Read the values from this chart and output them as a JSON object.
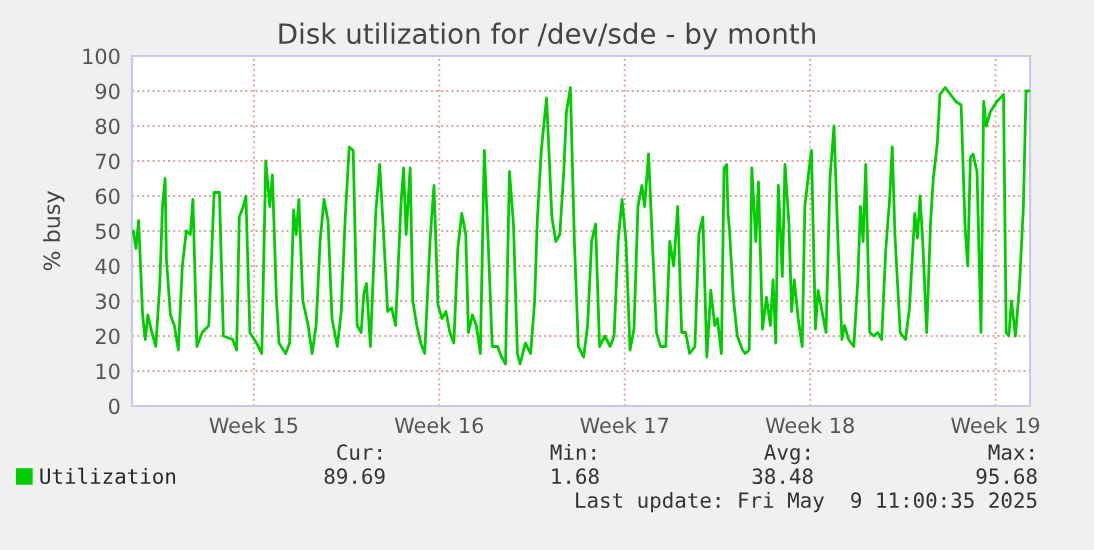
{
  "chart_data": {
    "type": "line",
    "title": "Disk utilization for /dev/sde - by month",
    "ylabel": "% busy",
    "xlim": [
      "2025-04-05T09:36",
      "2025-05-09T07:12"
    ],
    "ylim": [
      0,
      100
    ],
    "xticks": [
      {
        "value": "2025-04-10",
        "label": "Week 15"
      },
      {
        "value": "2025-04-17",
        "label": "Week 16"
      },
      {
        "value": "2025-04-24",
        "label": "Week 17"
      },
      {
        "value": "2025-05-01",
        "label": "Week 18"
      },
      {
        "value": "2025-05-08",
        "label": "Week 19"
      }
    ],
    "yticks": [
      0,
      10,
      20,
      30,
      40,
      50,
      60,
      70,
      80,
      90,
      100
    ],
    "grid": true,
    "legend": "bottom left",
    "marker": "none",
    "line_style": "solid",
    "annotations": [
      "Cur:",
      "Min:",
      "Avg:",
      "Max:",
      "89.69",
      "1.68",
      "38.48",
      "95.68",
      "Last update: Fri May  9 11:00:35 2025"
    ],
    "series": [
      {
        "name": "Utilization",
        "color": "#00cc00",
        "x": [
          "2025-04-05T10:48",
          "2025-04-05T13:12",
          "2025-04-05T15:36",
          "2025-04-05T19:12",
          "2025-04-05T21:36",
          "2025-04-06T00:00",
          "2025-04-06T03:36",
          "2025-04-06T07:12",
          "2025-04-06T10:48",
          "2025-04-06T13:12",
          "2025-04-06T15:36",
          "2025-04-06T16:48",
          "2025-04-06T20:24",
          "2025-04-07T00:00",
          "2025-04-07T03:36",
          "2025-04-07T07:12",
          "2025-04-07T10:48",
          "2025-04-07T14:24",
          "2025-04-07T16:48",
          "2025-04-07T20:24",
          "2025-04-08T01:12",
          "2025-04-08T07:12",
          "2025-04-08T12:00",
          "2025-04-08T16:48",
          "2025-04-08T20:24",
          "2025-04-09T04:48",
          "2025-04-09T08:24",
          "2025-04-09T10:48",
          "2025-04-09T14:24",
          "2025-04-09T16:48",
          "2025-04-09T20:24",
          "2025-04-10T02:24",
          "2025-04-10T07:12",
          "2025-04-10T10:48",
          "2025-04-10T14:24",
          "2025-04-10T16:48",
          "2025-04-10T20:24",
          "2025-04-10T22:48",
          "2025-04-11T04:48",
          "2025-04-11T08:24",
          "2025-04-11T12:00",
          "2025-04-11T14:24",
          "2025-04-11T16:48",
          "2025-04-11T20:24",
          "2025-04-12T01:12",
          "2025-04-12T04:48",
          "2025-04-12T08:24",
          "2025-04-12T12:00",
          "2025-04-12T15:36",
          "2025-04-12T19:12",
          "2025-04-12T22:48",
          "2025-04-13T03:36",
          "2025-04-13T07:12",
          "2025-04-13T10:48",
          "2025-04-13T14:24",
          "2025-04-13T18:00",
          "2025-04-13T21:36",
          "2025-04-14T01:12",
          "2025-04-14T03:36",
          "2025-04-14T06:00",
          "2025-04-14T09:36",
          "2025-04-14T14:24",
          "2025-04-14T18:00",
          "2025-04-14T21:36",
          "2025-04-15T01:12",
          "2025-04-15T04:48",
          "2025-04-15T08:24",
          "2025-04-15T13:12",
          "2025-04-15T15:36",
          "2025-04-15T18:00",
          "2025-04-15T21:36",
          "2025-04-16T00:00",
          "2025-04-16T03:36",
          "2025-04-16T07:12",
          "2025-04-16T10:48",
          "2025-04-16T15:36",
          "2025-04-16T19:12",
          "2025-04-16T22:48",
          "2025-04-17T02:24",
          "2025-04-17T06:00",
          "2025-04-17T09:36",
          "2025-04-17T13:12",
          "2025-04-17T16:48",
          "2025-04-17T20:24",
          "2025-04-18T00:00",
          "2025-04-18T02:24",
          "2025-04-18T06:00",
          "2025-04-18T09:36",
          "2025-04-18T13:12",
          "2025-04-18T16:48",
          "2025-04-18T20:24",
          "2025-04-19T00:00",
          "2025-04-19T04:48",
          "2025-04-19T08:24",
          "2025-04-19T12:00",
          "2025-04-19T15:36",
          "2025-04-19T19:12",
          "2025-04-19T22:48",
          "2025-04-20T01:12",
          "2025-04-20T06:00",
          "2025-04-20T10:48",
          "2025-04-20T14:24",
          "2025-04-20T16:48",
          "2025-04-20T20:24",
          "2025-04-21T01:12",
          "2025-04-21T06:00",
          "2025-04-21T09:36",
          "2025-04-21T13:12",
          "2025-04-21T16:48",
          "2025-04-21T19:12",
          "2025-04-21T22:48",
          "2025-04-22T02:24",
          "2025-04-22T06:00",
          "2025-04-22T10:48",
          "2025-04-22T14:24",
          "2025-04-22T18:00",
          "2025-04-22T21:36",
          "2025-04-23T01:12",
          "2025-04-23T06:00",
          "2025-04-23T10:48",
          "2025-04-23T14:24",
          "2025-04-23T18:00",
          "2025-04-23T21:36",
          "2025-04-24T01:12",
          "2025-04-24T04:48",
          "2025-04-24T08:24",
          "2025-04-24T12:00",
          "2025-04-24T15:36",
          "2025-04-24T18:00",
          "2025-04-24T21:36",
          "2025-04-25T01:12",
          "2025-04-25T04:48",
          "2025-04-25T08:24",
          "2025-04-25T13:12",
          "2025-04-25T16:48",
          "2025-04-25T20:24",
          "2025-04-26T00:00",
          "2025-04-26T03:36",
          "2025-04-26T07:12",
          "2025-04-26T10:48",
          "2025-04-26T15:36",
          "2025-04-26T19:12",
          "2025-04-26T22:48",
          "2025-04-27T02:24",
          "2025-04-27T06:00",
          "2025-04-27T09:36",
          "2025-04-27T12:00",
          "2025-04-27T15:36",
          "2025-04-27T18:00",
          "2025-04-27T20:24",
          "2025-04-27T21:36",
          "2025-04-27T22:48",
          "2025-04-28T02:24",
          "2025-04-28T06:00",
          "2025-04-28T10:48",
          "2025-04-28T13:12",
          "2025-04-28T16:48",
          "2025-04-28T19:12",
          "2025-04-28T22:48",
          "2025-04-29T01:12",
          "2025-04-29T04:48",
          "2025-04-29T08:24",
          "2025-04-29T12:00",
          "2025-04-29T14:24",
          "2025-04-29T16:48",
          "2025-04-29T19:12",
          "2025-04-29T22:48",
          "2025-04-30T01:12",
          "2025-04-30T04:48",
          "2025-04-30T07:12",
          "2025-04-30T09:36",
          "2025-04-30T13:12",
          "2025-04-30T16:48",
          "2025-04-30T19:12",
          "2025-04-30T22:48",
          "2025-05-01T01:12",
          "2025-05-01T04:48",
          "2025-05-01T07:12",
          "2025-05-01T10:48",
          "2025-05-01T14:24",
          "2025-05-01T18:00",
          "2025-05-01T21:36",
          "2025-05-02T01:12",
          "2025-05-02T04:48",
          "2025-05-02T07:12",
          "2025-05-02T10:48",
          "2025-05-02T15:36",
          "2025-05-02T19:12",
          "2025-05-02T21:36",
          "2025-05-03T00:00",
          "2025-05-03T02:24",
          "2025-05-03T06:00",
          "2025-05-03T09:36",
          "2025-05-03T13:12",
          "2025-05-03T16:48",
          "2025-05-03T20:24",
          "2025-05-04T00:00",
          "2025-05-04T02:24",
          "2025-05-04T04:48",
          "2025-05-04T09:36",
          "2025-05-04T14:24",
          "2025-05-04T18:00",
          "2025-05-04T22:48",
          "2025-05-05T01:12",
          "2025-05-05T03:36",
          "2025-05-05T06:00",
          "2025-05-05T09:36",
          "2025-05-05T13:12",
          "2025-05-05T15:36",
          "2025-05-05T19:12",
          "2025-05-05T21:36",
          "2025-05-06T02:24",
          "2025-05-06T07:12",
          "2025-05-06T12:00",
          "2025-05-06T16:48",
          "2025-05-06T20:24",
          "2025-05-06T22:48",
          "2025-05-07T01:12",
          "2025-05-07T03:36",
          "2025-05-07T07:12",
          "2025-05-07T10:48",
          "2025-05-07T13:12",
          "2025-05-07T15:36",
          "2025-05-07T19:12",
          "2025-05-08T01:12",
          "2025-05-08T07:12",
          "2025-05-08T09:36",
          "2025-05-08T12:00",
          "2025-05-08T14:24",
          "2025-05-08T18:00",
          "2025-05-08T21:36",
          "2025-05-09T01:12",
          "2025-05-09T03:36",
          "2025-05-09T06:00"
        ],
        "values": [
          50,
          45,
          53,
          26,
          19,
          26,
          21,
          17,
          35,
          57,
          65,
          42,
          26,
          23,
          16,
          40,
          50,
          49,
          59,
          17,
          21,
          23,
          61,
          61,
          20,
          19,
          16,
          54,
          57,
          60,
          21,
          18,
          15,
          70,
          57,
          66,
          31,
          18,
          15,
          18,
          56,
          49,
          59,
          30,
          23,
          15,
          23,
          47,
          59,
          53,
          25,
          17,
          27,
          54,
          74,
          73,
          23,
          21,
          32,
          35,
          17,
          55,
          69,
          49,
          27,
          28,
          23,
          57,
          68,
          49,
          68,
          30,
          23,
          18,
          15,
          47,
          63,
          29,
          25,
          27,
          21,
          18,
          45,
          55,
          49,
          21,
          26,
          23,
          15,
          73,
          46,
          17,
          17,
          14,
          12,
          67,
          52,
          15,
          12,
          18,
          15,
          30,
          53,
          73,
          88,
          54,
          47,
          49,
          67,
          84,
          91,
          47,
          17,
          14,
          23,
          47,
          52,
          17,
          20,
          17,
          20,
          47,
          59,
          47,
          16,
          22,
          57,
          63,
          57,
          72,
          46,
          21,
          17,
          17,
          47,
          40,
          57,
          21,
          21,
          15,
          17,
          49,
          54,
          14,
          33,
          23,
          25,
          15,
          68,
          69,
          55,
          51,
          31,
          20,
          16,
          15,
          16,
          68,
          47,
          64,
          22,
          31,
          23,
          36,
          18,
          63,
          37,
          69,
          52,
          27,
          36,
          25,
          17,
          57,
          67,
          73,
          22,
          33,
          27,
          21,
          65,
          80,
          47,
          19,
          23,
          19,
          17,
          36,
          57,
          47,
          69,
          21,
          20,
          21,
          19,
          44,
          59,
          74,
          49,
          21,
          19,
          28,
          55,
          48,
          60,
          47,
          21,
          53,
          65,
          75,
          89,
          91,
          89,
          87,
          86,
          51,
          40,
          71,
          72,
          67,
          21,
          87,
          80,
          84,
          87,
          89,
          21,
          20,
          30,
          20,
          34,
          57,
          90,
          90
        ]
      }
    ]
  }
}
